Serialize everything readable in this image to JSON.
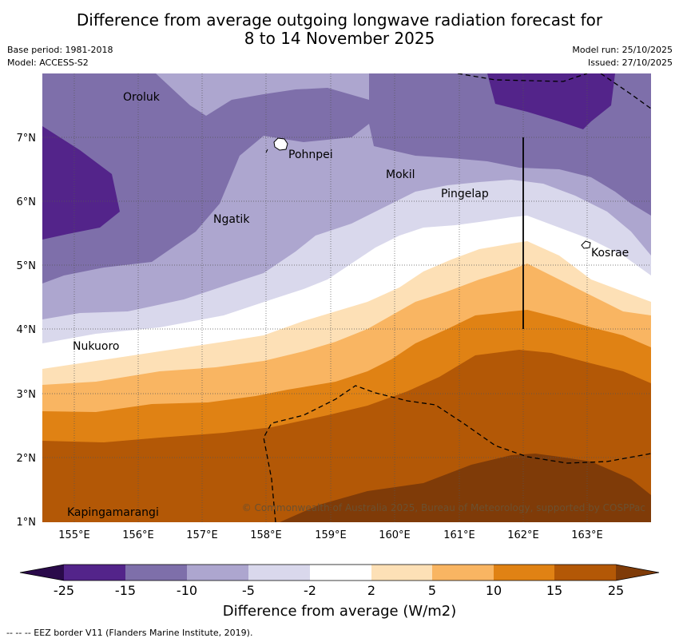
{
  "title": {
    "line1": "Difference from average outgoing longwave radiation forecast for",
    "line2": "8 to 14 November 2025"
  },
  "meta": {
    "base_period": "Base period: 1981-2018",
    "model": "Model: ACCESS-S2",
    "model_run": "Model run: 25/10/2025",
    "issued": "Issued: 27/10/2025"
  },
  "map": {
    "lon_labels": [
      "155°E",
      "156°E",
      "157°E",
      "158°E",
      "159°E",
      "160°E",
      "161°E",
      "162°E",
      "163°E"
    ],
    "lat_labels": [
      "1°N",
      "2°N",
      "3°N",
      "4°N",
      "5°N",
      "6°N",
      "7°N"
    ],
    "places": [
      "Oroluk",
      "Pohnpei",
      "Mokil",
      "Pingelap",
      "Ngatik",
      "Kosrae",
      "Nukuoro",
      "Kapingamarangi"
    ],
    "copyright": "© Commonwealth of Australia 2025, Bureau of Meteorology, supported by COSPPac"
  },
  "legend": {
    "bins": [
      {
        "color": "#2a0a4a"
      },
      {
        "color": "#53248a"
      },
      {
        "color": "#7e6faa"
      },
      {
        "color": "#ada6cf"
      },
      {
        "color": "#d9d8ec"
      },
      {
        "color": "#ffffff"
      },
      {
        "color": "#fde0b6"
      },
      {
        "color": "#f9b562"
      },
      {
        "color": "#e08214"
      },
      {
        "color": "#b35806"
      },
      {
        "color": "#7f3b08"
      }
    ],
    "ticks": [
      "-25",
      "-15",
      "-10",
      "-5",
      "-2",
      "2",
      "5",
      "10",
      "15",
      "25"
    ],
    "title": "Difference from average (W/m2)"
  },
  "footnote": "--  --  -- EEZ border V11 (Flanders Marine Institute, 2019)."
}
